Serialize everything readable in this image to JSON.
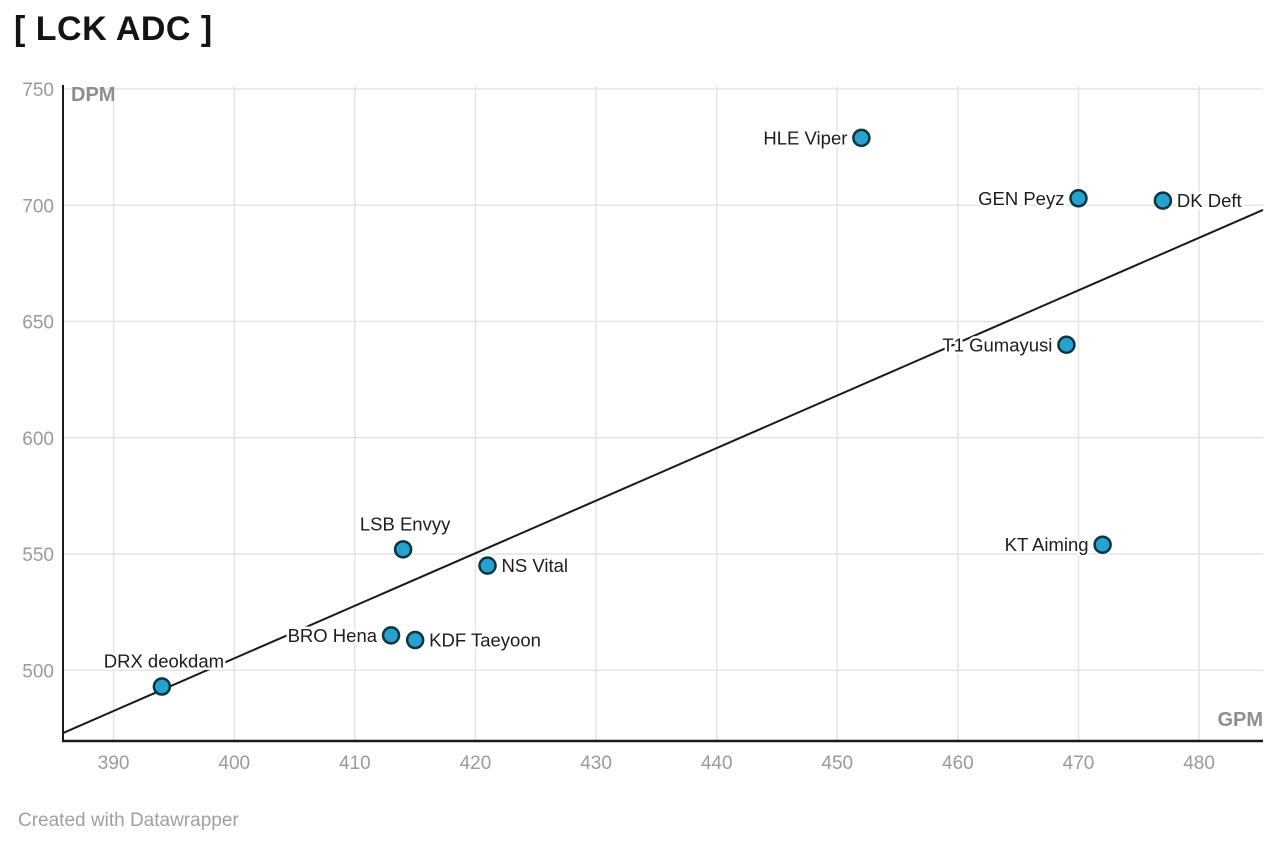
{
  "header": {
    "title": "[ LCK ADC ]"
  },
  "footer": {
    "attribution": "Created with Datawrapper"
  },
  "chart_data": {
    "type": "scatter",
    "title": "[ LCK ADC ]",
    "xlabel": "GPM",
    "ylabel": "DPM",
    "xlim": [
      385.8,
      485.3
    ],
    "ylim": [
      470,
      750
    ],
    "x_ticks": [
      390,
      400,
      410,
      420,
      430,
      440,
      450,
      460,
      470,
      480
    ],
    "y_ticks": [
      500,
      550,
      600,
      650,
      700,
      750
    ],
    "grid": true,
    "legend": "none",
    "trend_line": {
      "x1": 385.8,
      "y1": 473,
      "x2": 485.3,
      "y2": 698
    },
    "points": [
      {
        "label": "HLE Viper",
        "gpm": 452,
        "dpm": 729,
        "label_side": "left"
      },
      {
        "label": "GEN Peyz",
        "gpm": 470,
        "dpm": 703,
        "label_side": "left"
      },
      {
        "label": "DK Deft",
        "gpm": 477,
        "dpm": 702,
        "label_side": "right"
      },
      {
        "label": "T1 Gumayusi",
        "gpm": 469,
        "dpm": 640,
        "label_side": "left"
      },
      {
        "label": "KT Aiming",
        "gpm": 472,
        "dpm": 554,
        "label_side": "left"
      },
      {
        "label": "LSB Envyy",
        "gpm": 414,
        "dpm": 552,
        "label_side": "top"
      },
      {
        "label": "NS Vital",
        "gpm": 421,
        "dpm": 545,
        "label_side": "right"
      },
      {
        "label": "BRO Hena",
        "gpm": 413,
        "dpm": 515,
        "label_side": "left"
      },
      {
        "label": "KDF Taeyoon",
        "gpm": 415,
        "dpm": 513,
        "label_side": "right"
      },
      {
        "label": "DRX deokdam",
        "gpm": 394,
        "dpm": 493,
        "label_side": "top"
      }
    ],
    "style": {
      "dot_fill": "#27a2cc",
      "dot_stroke": "#0b3445",
      "trend_color": "#1a1a1a",
      "grid_color": "#e4e4e4",
      "axis_color": "#1a1a1a",
      "tick_text_color": "#9a9a9a",
      "axis_label_color": "#8e8e8e",
      "point_label_color": "#1d1d1d"
    }
  }
}
